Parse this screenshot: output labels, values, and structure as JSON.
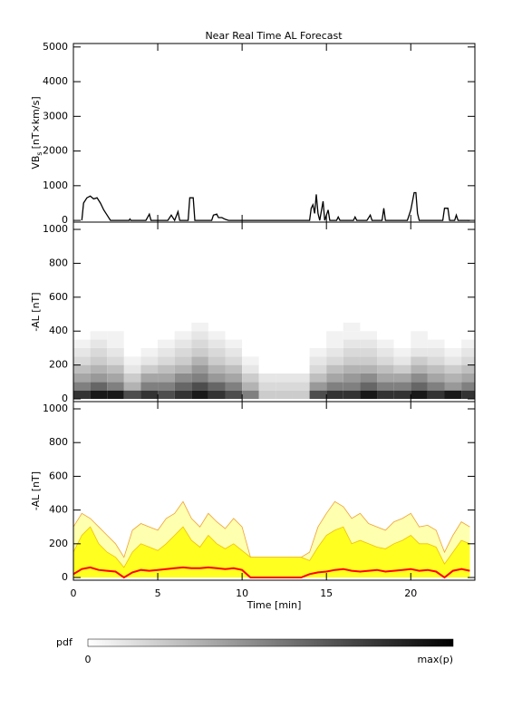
{
  "title": "Near Real Time AL Forecast",
  "colorbar": {
    "label": "pdf",
    "min_label": "0",
    "max_label": "max(p)"
  },
  "chart_data": [
    {
      "type": "line",
      "ylabel": {
        "main": "VB",
        "sub": "s",
        "unit": "[nT×km/s]"
      },
      "color": "#000000",
      "x": [
        0.5,
        0.6,
        0.8,
        1.0,
        1.2,
        1.4,
        1.6,
        1.8,
        2.0,
        2.2,
        3.3,
        3.35,
        3.4,
        4.3,
        4.5,
        4.6,
        5.6,
        5.8,
        6.0,
        6.2,
        6.3,
        6.8,
        6.9,
        7.1,
        7.2,
        8.2,
        8.3,
        8.5,
        8.6,
        8.8,
        9.0,
        9.2,
        14.0,
        14.1,
        14.2,
        14.3,
        14.4,
        14.5,
        14.6,
        14.8,
        14.9,
        15.1,
        15.2,
        15.6,
        15.7,
        15.8,
        16.6,
        16.7,
        16.8,
        17.4,
        17.6,
        17.7,
        18.3,
        18.4,
        18.5,
        19.8,
        20.0,
        20.2,
        20.3,
        20.4,
        20.5,
        21.9,
        22.0,
        22.2,
        22.3,
        22.6,
        22.7,
        22.8,
        23.5
      ],
      "values": [
        0,
        500,
        650,
        700,
        620,
        650,
        500,
        300,
        150,
        0,
        0,
        40,
        0,
        0,
        180,
        0,
        0,
        150,
        0,
        250,
        0,
        0,
        650,
        650,
        0,
        0,
        150,
        180,
        80,
        80,
        30,
        0,
        0,
        350,
        450,
        200,
        750,
        200,
        0,
        550,
        0,
        300,
        0,
        0,
        100,
        0,
        0,
        100,
        0,
        0,
        150,
        0,
        0,
        350,
        0,
        0,
        300,
        800,
        800,
        200,
        0,
        0,
        350,
        350,
        0,
        0,
        150,
        0,
        0
      ],
      "xlim": [
        0,
        23.8
      ],
      "xticks": [
        0,
        5,
        10,
        15,
        20
      ],
      "ylim": [
        -50,
        5100
      ],
      "yticks": [
        0,
        1000,
        2000,
        3000,
        4000,
        5000
      ]
    },
    {
      "type": "heatmap",
      "ylabel": "-AL [nT]",
      "x_bins": [
        0,
        1,
        2,
        3,
        4,
        5,
        6,
        7,
        8,
        9,
        10,
        11,
        12,
        13,
        14,
        15,
        16,
        17,
        18,
        19,
        20,
        21,
        22,
        23,
        23.8
      ],
      "y_bins": [
        0,
        50,
        100,
        150,
        200,
        250,
        300,
        350,
        400,
        450
      ],
      "z": [
        [
          0.8,
          0.9,
          0.9,
          0.7,
          0.8,
          0.7,
          0.8,
          0.9,
          0.8,
          0.7,
          0.5,
          0.2,
          0.2,
          0.2,
          0.7,
          0.8,
          0.8,
          0.9,
          0.8,
          0.8,
          0.9,
          0.8,
          0.9,
          0.8
        ],
        [
          0.5,
          0.6,
          0.5,
          0.3,
          0.5,
          0.5,
          0.6,
          0.7,
          0.6,
          0.5,
          0.3,
          0.15,
          0.15,
          0.15,
          0.4,
          0.5,
          0.5,
          0.6,
          0.5,
          0.5,
          0.6,
          0.5,
          0.4,
          0.5
        ],
        [
          0.35,
          0.4,
          0.35,
          0.2,
          0.35,
          0.35,
          0.45,
          0.5,
          0.4,
          0.35,
          0.2,
          0.1,
          0.1,
          0.1,
          0.25,
          0.35,
          0.4,
          0.45,
          0.35,
          0.35,
          0.45,
          0.35,
          0.3,
          0.35
        ],
        [
          0.25,
          0.3,
          0.25,
          0.1,
          0.2,
          0.25,
          0.3,
          0.4,
          0.3,
          0.25,
          0.1,
          0,
          0,
          0,
          0.15,
          0.25,
          0.3,
          0.3,
          0.25,
          0.2,
          0.3,
          0.25,
          0.2,
          0.25
        ],
        [
          0.15,
          0.2,
          0.15,
          0.05,
          0.1,
          0.15,
          0.2,
          0.3,
          0.2,
          0.15,
          0.05,
          0,
          0,
          0,
          0.1,
          0.15,
          0.2,
          0.2,
          0.15,
          0.1,
          0.2,
          0.15,
          0.1,
          0.15
        ],
        [
          0.1,
          0.15,
          0.1,
          0,
          0.05,
          0.1,
          0.15,
          0.2,
          0.15,
          0.1,
          0,
          0,
          0,
          0,
          0.05,
          0.1,
          0.15,
          0.15,
          0.1,
          0.05,
          0.1,
          0.1,
          0.05,
          0.1
        ],
        [
          0.05,
          0.1,
          0.05,
          0,
          0,
          0.05,
          0.1,
          0.15,
          0.1,
          0.05,
          0,
          0,
          0,
          0,
          0,
          0.05,
          0.1,
          0.1,
          0.05,
          0,
          0.05,
          0.05,
          0,
          0.05
        ],
        [
          0,
          0.05,
          0.05,
          0,
          0,
          0,
          0.05,
          0.1,
          0.05,
          0,
          0,
          0,
          0,
          0,
          0,
          0.05,
          0.05,
          0.05,
          0,
          0,
          0.05,
          0,
          0,
          0
        ],
        [
          0,
          0,
          0,
          0,
          0,
          0,
          0,
          0.05,
          0,
          0,
          0,
          0,
          0,
          0,
          0,
          0,
          0.05,
          0,
          0,
          0,
          0,
          0,
          0,
          0
        ]
      ],
      "xlim": [
        0,
        23.8
      ],
      "xticks": [
        0,
        5,
        10,
        15,
        20
      ],
      "ylim": [
        -16,
        1043
      ],
      "yticks": [
        0,
        200,
        400,
        600,
        800,
        1000
      ]
    },
    {
      "type": "area",
      "ylabel": "-AL [nT]",
      "xlabel": "Time [min]",
      "x": [
        0,
        0.5,
        1,
        1.5,
        2,
        2.5,
        3,
        3.5,
        4,
        4.5,
        5,
        5.5,
        6,
        6.5,
        7,
        7.5,
        8,
        8.5,
        9,
        9.5,
        10,
        10.5,
        11,
        11.5,
        12,
        12.5,
        13,
        13.5,
        14,
        14.5,
        15,
        15.5,
        16,
        16.5,
        17,
        17.5,
        18,
        18.5,
        19,
        19.5,
        20,
        20.5,
        21,
        21.5,
        22,
        22.5,
        23,
        23.5
      ],
      "series": [
        {
          "color": "#f0a030",
          "fill": "#ffffb0",
          "values": [
            300,
            380,
            350,
            300,
            250,
            200,
            120,
            280,
            320,
            300,
            280,
            350,
            380,
            450,
            350,
            300,
            380,
            330,
            290,
            350,
            300,
            120,
            120,
            120,
            120,
            120,
            120,
            120,
            150,
            300,
            380,
            450,
            420,
            350,
            380,
            320,
            300,
            280,
            330,
            350,
            380,
            300,
            310,
            280,
            150,
            250,
            330,
            300
          ]
        },
        {
          "color": "#f0c000",
          "fill": "#ffff20",
          "values": [
            150,
            250,
            300,
            200,
            150,
            120,
            60,
            150,
            200,
            180,
            160,
            200,
            250,
            300,
            220,
            180,
            250,
            200,
            170,
            200,
            160,
            120,
            120,
            120,
            120,
            120,
            120,
            120,
            100,
            180,
            250,
            280,
            300,
            200,
            220,
            200,
            180,
            170,
            200,
            220,
            250,
            200,
            200,
            180,
            80,
            150,
            220,
            200
          ]
        },
        {
          "color": "#ff0000",
          "values": [
            20,
            50,
            60,
            45,
            40,
            35,
            0,
            30,
            45,
            40,
            45,
            50,
            55,
            60,
            55,
            55,
            60,
            55,
            50,
            55,
            45,
            0,
            0,
            0,
            0,
            0,
            0,
            0,
            20,
            30,
            35,
            45,
            50,
            40,
            35,
            40,
            45,
            35,
            40,
            45,
            50,
            40,
            45,
            35,
            0,
            40,
            50,
            40
          ]
        }
      ],
      "xlim": [
        0,
        23.8
      ],
      "xticks": [
        0,
        5,
        10,
        15,
        20
      ],
      "ylim": [
        -16,
        1043
      ],
      "yticks": [
        0,
        200,
        400,
        600,
        800,
        1000
      ]
    }
  ]
}
